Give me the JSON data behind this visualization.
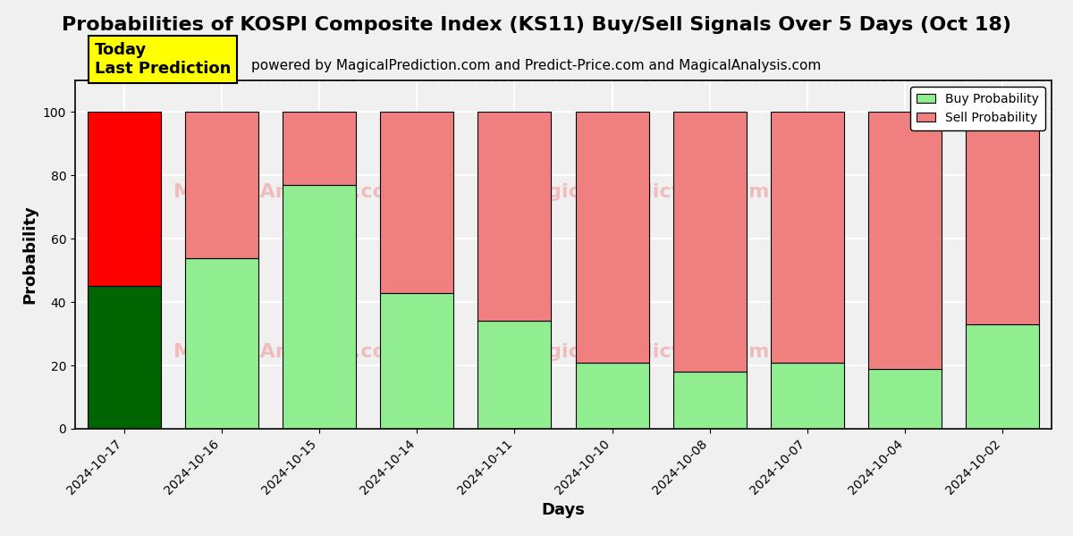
{
  "title": "Probabilities of KOSPI Composite Index (KS11) Buy/Sell Signals Over 5 Days (Oct 18)",
  "subtitle": "powered by MagicalPrediction.com and Predict-Price.com and MagicalAnalysis.com",
  "xlabel": "Days",
  "ylabel": "Probability",
  "categories": [
    "2024-10-17",
    "2024-10-16",
    "2024-10-15",
    "2024-10-14",
    "2024-10-11",
    "2024-10-10",
    "2024-10-08",
    "2024-10-07",
    "2024-10-04",
    "2024-10-02"
  ],
  "buy_values": [
    45,
    54,
    77,
    43,
    34,
    21,
    18,
    21,
    19,
    33
  ],
  "sell_values": [
    55,
    46,
    23,
    57,
    66,
    79,
    82,
    79,
    81,
    67
  ],
  "buy_color_today": "#006400",
  "buy_color_normal": "#90EE90",
  "sell_color_today": "#FF0000",
  "sell_color_normal": "#F08080",
  "bar_edge_color": "black",
  "bar_edge_width": 0.8,
  "ylim": [
    0,
    110
  ],
  "yticks": [
    0,
    20,
    40,
    60,
    80,
    100
  ],
  "dashed_line_y": 110,
  "legend_buy_color": "#90EE90",
  "legend_sell_color": "#F08080",
  "today_box_color": "#FFFF00",
  "today_box_text": "Today\nLast Prediction",
  "grid_color": "white",
  "background_color": "#f0f0f0",
  "title_fontsize": 16,
  "subtitle_fontsize": 11,
  "axis_label_fontsize": 13,
  "bar_width": 0.75
}
